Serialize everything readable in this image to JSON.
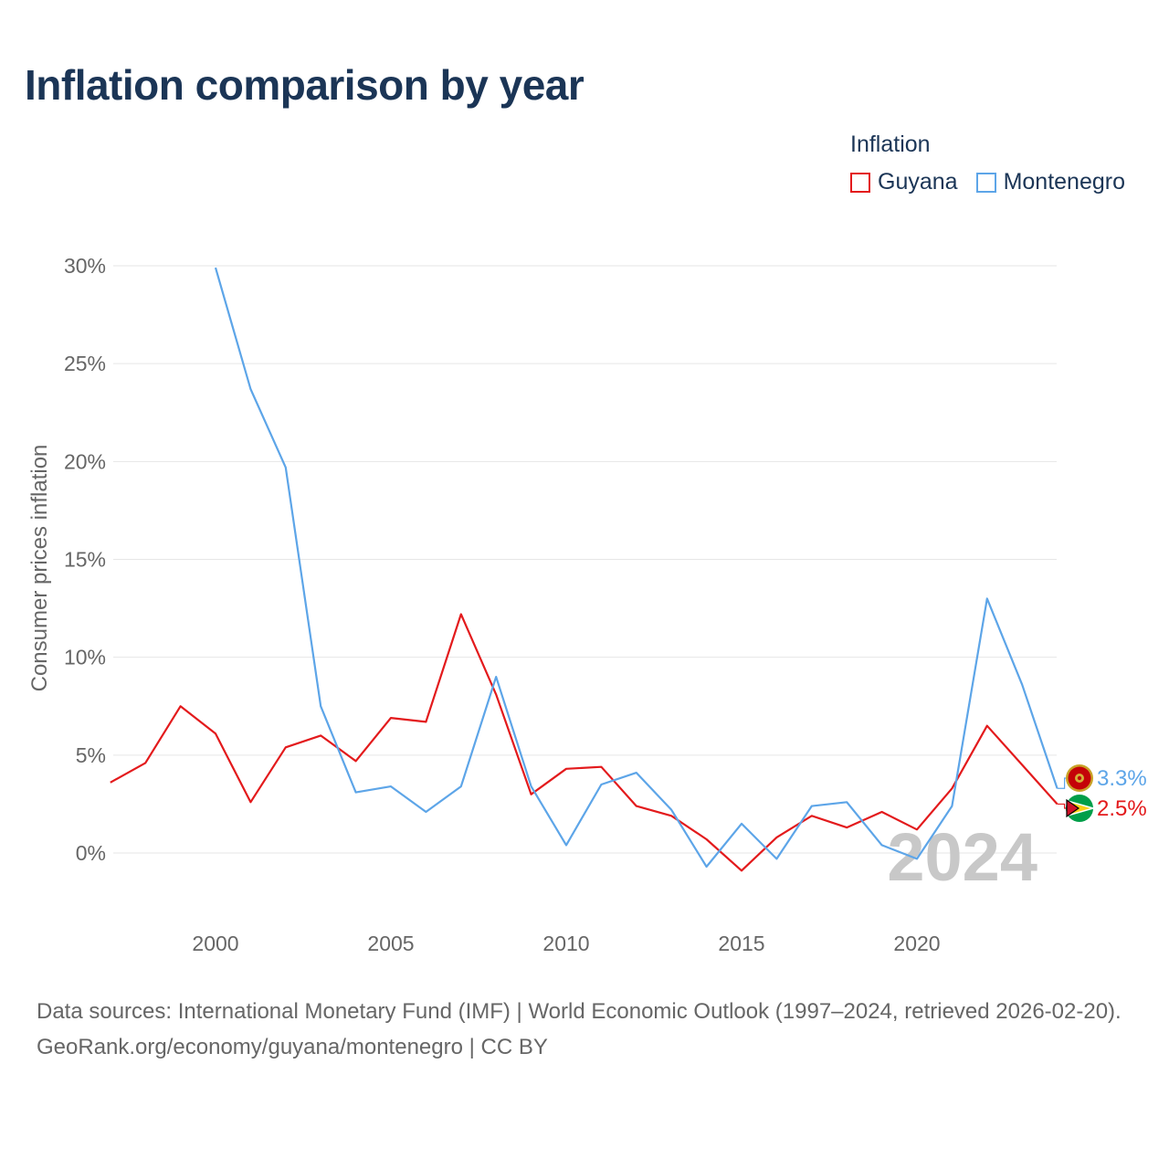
{
  "header": {
    "title": "Inflation comparison by year"
  },
  "legend": {
    "title": "Inflation",
    "items": [
      {
        "label": "Guyana",
        "color": "#e31a1c"
      },
      {
        "label": "Montenegro",
        "color": "#5da5e8"
      }
    ]
  },
  "footer": {
    "source": "Data sources: International Monetary Fund (IMF) | World Economic Outlook (1997–2024, retrieved 2026-02-20).",
    "credit": "GeoRank.org/economy/guyana/montenegro | CC BY"
  },
  "chart_data": {
    "type": "line",
    "title": "Inflation comparison by year",
    "xlabel": "",
    "ylabel": "Consumer prices inflation",
    "xlim": [
      1997,
      2024
    ],
    "ylim": [
      -3.5,
      30
    ],
    "x_ticks": [
      2000,
      2005,
      2010,
      2015,
      2020
    ],
    "y_ticks": [
      0,
      5,
      10,
      15,
      20,
      25,
      30
    ],
    "y_tick_labels": [
      "0%",
      "5%",
      "10%",
      "15%",
      "20%",
      "25%",
      "30%"
    ],
    "grid": true,
    "watermark_year": "2024",
    "series": [
      {
        "name": "Guyana",
        "color": "#e31a1c",
        "flag_icon": "guyana-flag-icon",
        "end_label": "2.5%",
        "points": [
          [
            1997,
            3.6
          ],
          [
            1998,
            4.6
          ],
          [
            1999,
            7.5
          ],
          [
            2000,
            6.1
          ],
          [
            2001,
            2.6
          ],
          [
            2002,
            5.4
          ],
          [
            2003,
            6.0
          ],
          [
            2004,
            4.7
          ],
          [
            2005,
            6.9
          ],
          [
            2006,
            6.7
          ],
          [
            2007,
            12.2
          ],
          [
            2008,
            8.1
          ],
          [
            2009,
            3.0
          ],
          [
            2010,
            4.3
          ],
          [
            2011,
            4.4
          ],
          [
            2012,
            2.4
          ],
          [
            2013,
            1.9
          ],
          [
            2014,
            0.7
          ],
          [
            2015,
            -0.9
          ],
          [
            2016,
            0.8
          ],
          [
            2017,
            1.9
          ],
          [
            2018,
            1.3
          ],
          [
            2019,
            2.1
          ],
          [
            2020,
            1.2
          ],
          [
            2021,
            3.3
          ],
          [
            2022,
            6.5
          ],
          [
            2023,
            4.5
          ],
          [
            2024,
            2.5
          ]
        ]
      },
      {
        "name": "Montenegro",
        "color": "#5da5e8",
        "flag_icon": "montenegro-flag-icon",
        "end_label": "3.3%",
        "points": [
          [
            2000,
            29.9
          ],
          [
            2001,
            23.7
          ],
          [
            2002,
            19.7
          ],
          [
            2003,
            7.5
          ],
          [
            2004,
            3.1
          ],
          [
            2005,
            3.4
          ],
          [
            2006,
            2.1
          ],
          [
            2007,
            3.4
          ],
          [
            2008,
            9.0
          ],
          [
            2009,
            3.4
          ],
          [
            2010,
            0.4
          ],
          [
            2011,
            3.5
          ],
          [
            2012,
            4.1
          ],
          [
            2013,
            2.2
          ],
          [
            2014,
            -0.7
          ],
          [
            2015,
            1.5
          ],
          [
            2016,
            -0.3
          ],
          [
            2017,
            2.4
          ],
          [
            2018,
            2.6
          ],
          [
            2019,
            0.4
          ],
          [
            2020,
            -0.3
          ],
          [
            2021,
            2.4
          ],
          [
            2022,
            13.0
          ],
          [
            2023,
            8.6
          ],
          [
            2024,
            3.3
          ]
        ]
      }
    ]
  }
}
